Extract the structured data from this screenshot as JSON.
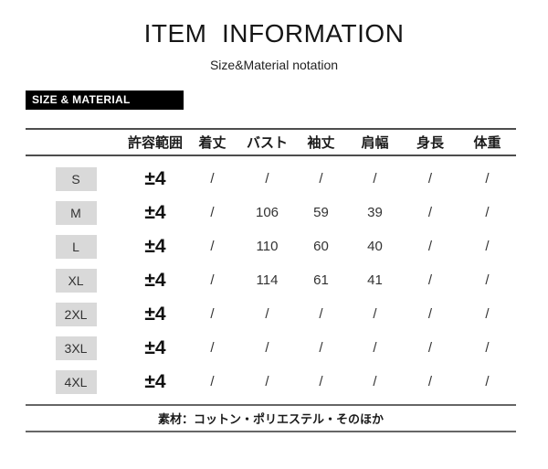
{
  "header": {
    "title": "ITEM  INFORMATION",
    "subtitle": "Size&Material notation",
    "banner_label": "SIZE & MATERIAL"
  },
  "table": {
    "headers": [
      "",
      "許容範囲",
      "着丈",
      "バスト",
      "袖丈",
      "肩幅",
      "身長",
      "体重"
    ],
    "rows": [
      {
        "size": "S",
        "tolerance": "±4",
        "values": [
          "/",
          "/",
          "/",
          "/",
          "/",
          "/"
        ]
      },
      {
        "size": "M",
        "tolerance": "±4",
        "values": [
          "/",
          "106",
          "59",
          "39",
          "/",
          "/"
        ]
      },
      {
        "size": "L",
        "tolerance": "±4",
        "values": [
          "/",
          "110",
          "60",
          "40",
          "/",
          "/"
        ]
      },
      {
        "size": "XL",
        "tolerance": "±4",
        "values": [
          "/",
          "114",
          "61",
          "41",
          "/",
          "/"
        ]
      },
      {
        "size": "2XL",
        "tolerance": "±4",
        "values": [
          "/",
          "/",
          "/",
          "/",
          "/",
          "/"
        ]
      },
      {
        "size": "3XL",
        "tolerance": "±4",
        "values": [
          "/",
          "/",
          "/",
          "/",
          "/",
          "/"
        ]
      },
      {
        "size": "4XL",
        "tolerance": "±4",
        "values": [
          "/",
          "/",
          "/",
          "/",
          "/",
          "/"
        ]
      }
    ]
  },
  "footer": {
    "material_text": "素材：コットン・ポリエステル・そのほか"
  },
  "colors": {
    "banner_bg": "#000000",
    "banner_text": "#ffffff",
    "size_box_bg": "#d9d9d9",
    "rule": "#555555",
    "text": "#1c1c1c"
  }
}
